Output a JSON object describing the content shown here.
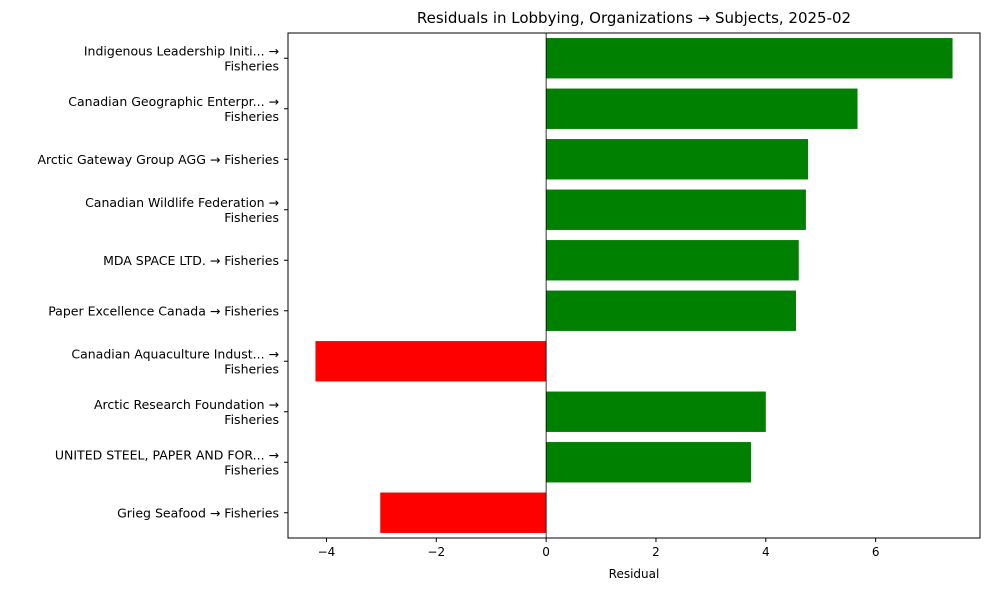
{
  "chart_data": {
    "type": "bar",
    "orientation": "horizontal",
    "title": "Residuals in Lobbying, Organizations → Subjects, 2025-02",
    "xlabel": "Residual",
    "ylabel": "",
    "xlim": [
      -4.7,
      7.9
    ],
    "xticks": [
      -4,
      -2,
      0,
      2,
      4,
      6
    ],
    "xtick_labels": [
      "−4",
      "−2",
      "0",
      "2",
      "4",
      "6"
    ],
    "grid": false,
    "positive_color": "#008000",
    "negative_color": "#ff0000",
    "categories": [
      [
        "Indigenous Leadership Initi... →",
        "Fisheries"
      ],
      [
        "Canadian Geographic Enterpr... →",
        "Fisheries"
      ],
      [
        "Arctic Gateway Group AGG → Fisheries"
      ],
      [
        "Canadian Wildlife Federation →",
        "Fisheries"
      ],
      [
        "MDA SPACE LTD. → Fisheries"
      ],
      [
        "Paper Excellence Canada → Fisheries"
      ],
      [
        "Canadian Aquaculture Indust... →",
        "Fisheries"
      ],
      [
        "Arctic Research Foundation →",
        "Fisheries"
      ],
      [
        "UNITED STEEL, PAPER AND FOR... →",
        "Fisheries"
      ],
      [
        "Grieg Seafood → Fisheries"
      ]
    ],
    "values": [
      7.4,
      5.67,
      4.77,
      4.73,
      4.6,
      4.55,
      -4.2,
      4.0,
      3.73,
      -3.02
    ]
  }
}
